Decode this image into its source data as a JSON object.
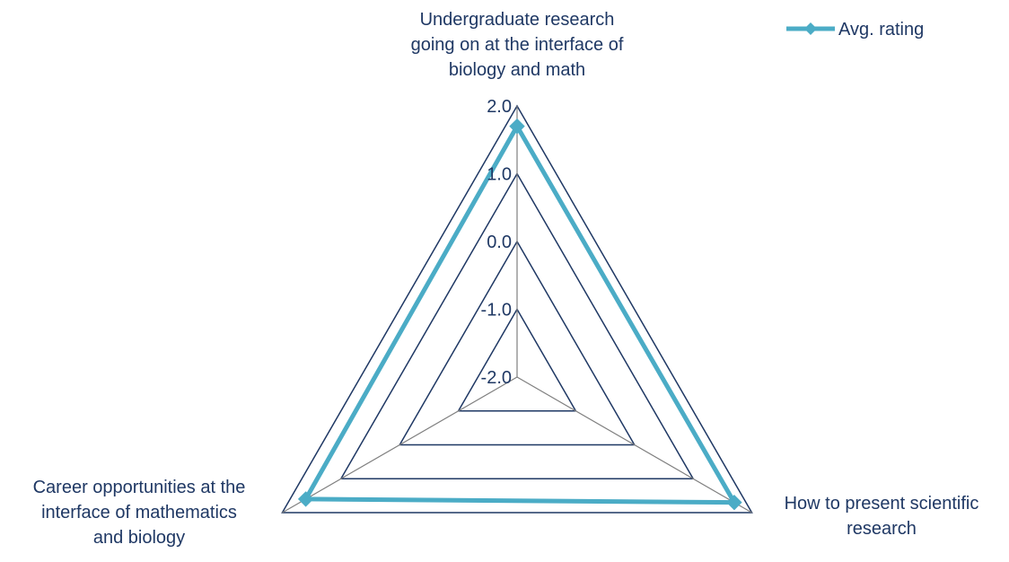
{
  "chart_data": {
    "type": "radar",
    "categories": [
      {
        "lines": [
          "Undergraduate research",
          "going on at the interface of",
          "biology and math"
        ]
      },
      {
        "lines": [
          "How to present scientific",
          "research"
        ]
      },
      {
        "lines": [
          "Career opportunities at the",
          "interface of mathematics",
          "and biology"
        ]
      }
    ],
    "series": [
      {
        "name": "Avg. rating",
        "values": [
          1.7,
          1.7,
          1.6
        ],
        "color": "#4bacc6"
      }
    ],
    "r_ticks": [
      "-2.0",
      "-1.0",
      "0.0",
      "1.0",
      "2.0"
    ],
    "r_range": [
      -2,
      2
    ],
    "grid_color": "#1f3864",
    "spoke_color": "#7f7f7f",
    "text_color": "#1f3864",
    "legend": "top-right"
  }
}
